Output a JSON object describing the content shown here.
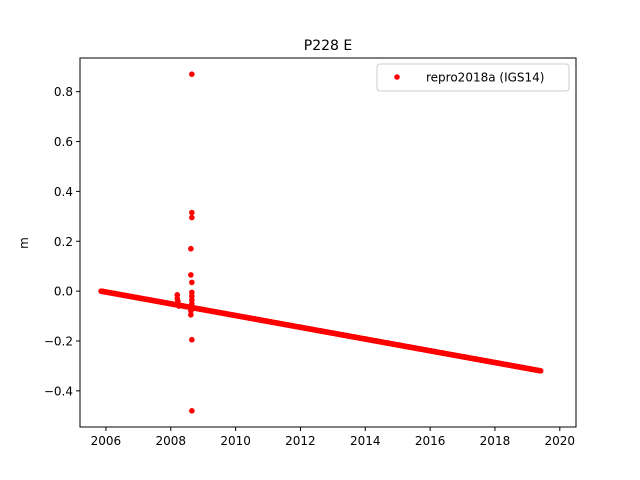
{
  "chart_data": {
    "type": "scatter",
    "title": "P228 E",
    "xlabel": "",
    "ylabel": "m",
    "xlim": [
      2005.2,
      2020.5
    ],
    "ylim": [
      -0.545,
      0.935
    ],
    "xticks": [
      2006,
      2008,
      2010,
      2012,
      2014,
      2016,
      2018,
      2020
    ],
    "xtick_labels": [
      "2006",
      "2008",
      "2010",
      "2012",
      "2014",
      "2016",
      "2018",
      "2020"
    ],
    "yticks": [
      -0.4,
      -0.2,
      0.0,
      0.2,
      0.4,
      0.6,
      0.8
    ],
    "ytick_labels": [
      "−0.4",
      "−0.2",
      "0.0",
      "0.2",
      "0.4",
      "0.6",
      "0.8"
    ],
    "grid": false,
    "legend_position": "top-right",
    "series": [
      {
        "name": "repro2018a (IGS14)",
        "color": "#ff0000",
        "marker": "circle",
        "trend": {
          "x_start": 2005.85,
          "x_end": 2019.42,
          "y_start": 0.0,
          "y_end": -0.32,
          "step": 0.02
        },
        "points": [
          {
            "x": 2008.2,
            "y": -0.015
          },
          {
            "x": 2008.2,
            "y": -0.03
          },
          {
            "x": 2008.22,
            "y": -0.04
          },
          {
            "x": 2008.25,
            "y": -0.06
          },
          {
            "x": 2008.65,
            "y": 0.87
          },
          {
            "x": 2008.65,
            "y": 0.315
          },
          {
            "x": 2008.65,
            "y": 0.295
          },
          {
            "x": 2008.62,
            "y": 0.17
          },
          {
            "x": 2008.62,
            "y": 0.065
          },
          {
            "x": 2008.65,
            "y": 0.035
          },
          {
            "x": 2008.65,
            "y": -0.005
          },
          {
            "x": 2008.65,
            "y": -0.02
          },
          {
            "x": 2008.65,
            "y": -0.035
          },
          {
            "x": 2008.65,
            "y": -0.05
          },
          {
            "x": 2008.65,
            "y": -0.065
          },
          {
            "x": 2008.62,
            "y": -0.08
          },
          {
            "x": 2008.62,
            "y": -0.095
          },
          {
            "x": 2008.65,
            "y": -0.195
          },
          {
            "x": 2008.65,
            "y": -0.48
          }
        ]
      }
    ]
  }
}
